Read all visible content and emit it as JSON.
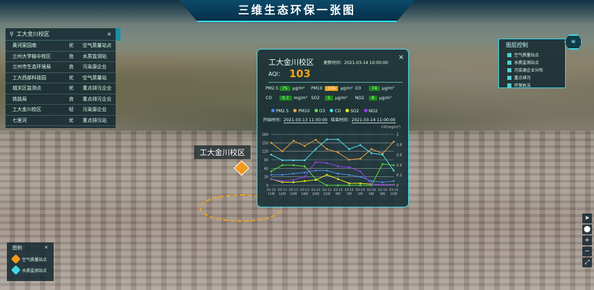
{
  "header": {
    "title": "三维生态环保一张图"
  },
  "search": {
    "placeholder": "工大金川校区",
    "close": "×",
    "items": [
      {
        "name": "黄河家园南",
        "type": "优",
        "kind": "空气质量站点"
      },
      {
        "name": "兰州大学榆中校区",
        "type": "良",
        "kind": "水质监测站"
      },
      {
        "name": "兰州市生态环境局",
        "type": "良",
        "kind": "污染源企业"
      },
      {
        "name": "工大西部科技园",
        "type": "优",
        "kind": "空气质量站"
      },
      {
        "name": "城关区监测点",
        "type": "优",
        "kind": "重点排污企业"
      },
      {
        "name": "铁路局",
        "type": "良",
        "kind": "重点排污企业"
      },
      {
        "name": "工大金川校区",
        "type": "轻",
        "kind": "污染源企业"
      },
      {
        "name": "七里河",
        "type": "优",
        "kind": "重点排污站"
      }
    ]
  },
  "popup": {
    "title": "工大金川校区",
    "update": "更新时间：2021-03-14 10:00:00",
    "close": "×",
    "aqi_label": "AQI：",
    "aqi": "103",
    "metrics": [
      {
        "name": "PM2.5",
        "value": "75",
        "unit": "μg/m³",
        "level": "good"
      },
      {
        "name": "PM10",
        "value": "155",
        "unit": "μg/m³",
        "level": "bad"
      },
      {
        "name": "O3",
        "value": "74",
        "unit": "μg/m³",
        "level": "good"
      },
      {
        "name": "CO",
        "value": "0.7",
        "unit": "mg/m³",
        "level": "good"
      },
      {
        "name": "SO2",
        "value": "5",
        "unit": "μg/m³",
        "level": "good"
      },
      {
        "name": "NO2",
        "value": "6",
        "unit": "μg/m³",
        "level": "good"
      }
    ],
    "start": "开始时间：",
    "start_val": "2021-03-13 11:00:00",
    "end": "结束时间：",
    "end_val": "2021-03-14 11:00:00"
  },
  "chart_data": {
    "type": "line",
    "right_ylabel": "CO(mg/m³)",
    "ylim": [
      0,
      180
    ],
    "y2lim": [
      0,
      1
    ],
    "yticks": [
      "0",
      "30",
      "60",
      "90",
      "120",
      "150",
      "180"
    ],
    "y2ticks": [
      "0",
      "0.2",
      "0.4",
      "0.6",
      "0.8",
      "1"
    ],
    "categories": [
      "03-13 12时",
      "03-13 14时",
      "03-13 16时",
      "03-13 18时",
      "03-13 20时",
      "03-13 22时",
      "03-14 0时",
      "03-14 2时",
      "03-14 4时",
      "03-14 6时",
      "03-14 8时",
      "03-14 10时"
    ],
    "series": [
      {
        "name": "PM2.5",
        "color": "#4a8cf0",
        "axis": "left",
        "values": [
          37,
          37,
          41,
          45,
          52,
          52,
          41,
          37,
          30,
          15,
          11,
          15
        ]
      },
      {
        "name": "PM10",
        "color": "#f0a040",
        "axis": "left",
        "values": [
          150,
          120,
          157,
          139,
          161,
          128,
          116,
          90,
          94,
          128,
          112,
          154
        ]
      },
      {
        "name": "O3",
        "color": "#60e040",
        "axis": "left",
        "values": [
          49,
          71,
          71,
          67,
          22,
          0,
          0,
          0,
          0,
          0,
          75,
          71
        ]
      },
      {
        "name": "CO",
        "color": "#50e0f0",
        "axis": "right",
        "values": [
          0.6,
          0.49,
          0.49,
          0.49,
          0.71,
          0.9,
          0.9,
          0.71,
          0.79,
          0.63,
          0.6,
          0.29
        ]
      },
      {
        "name": "SO2",
        "color": "#f0f020",
        "axis": "left",
        "values": [
          22,
          11,
          11,
          15,
          19,
          37,
          22,
          7,
          7,
          4,
          2,
          2
        ]
      },
      {
        "name": "NO2",
        "color": "#9a40f0",
        "axis": "left",
        "values": [
          22,
          15,
          19,
          30,
          82,
          79,
          67,
          64,
          49,
          4,
          2,
          2
        ]
      }
    ]
  },
  "layers": {
    "title": "图层控制",
    "items": [
      "空气质量站点",
      "水质监测站点",
      "污染源企业分布",
      "重点排污",
      "环保执法"
    ]
  },
  "legend": {
    "title": "图例",
    "close": "×",
    "items": [
      {
        "label": "空气质量站点",
        "color": "#f29a1a"
      },
      {
        "label": "水质监测站点",
        "color": "#3fd8e8"
      }
    ]
  },
  "map": {
    "label": "工大金川校区"
  },
  "tools": [
    "➤",
    "⬤",
    "+",
    "−",
    "⤢"
  ]
}
